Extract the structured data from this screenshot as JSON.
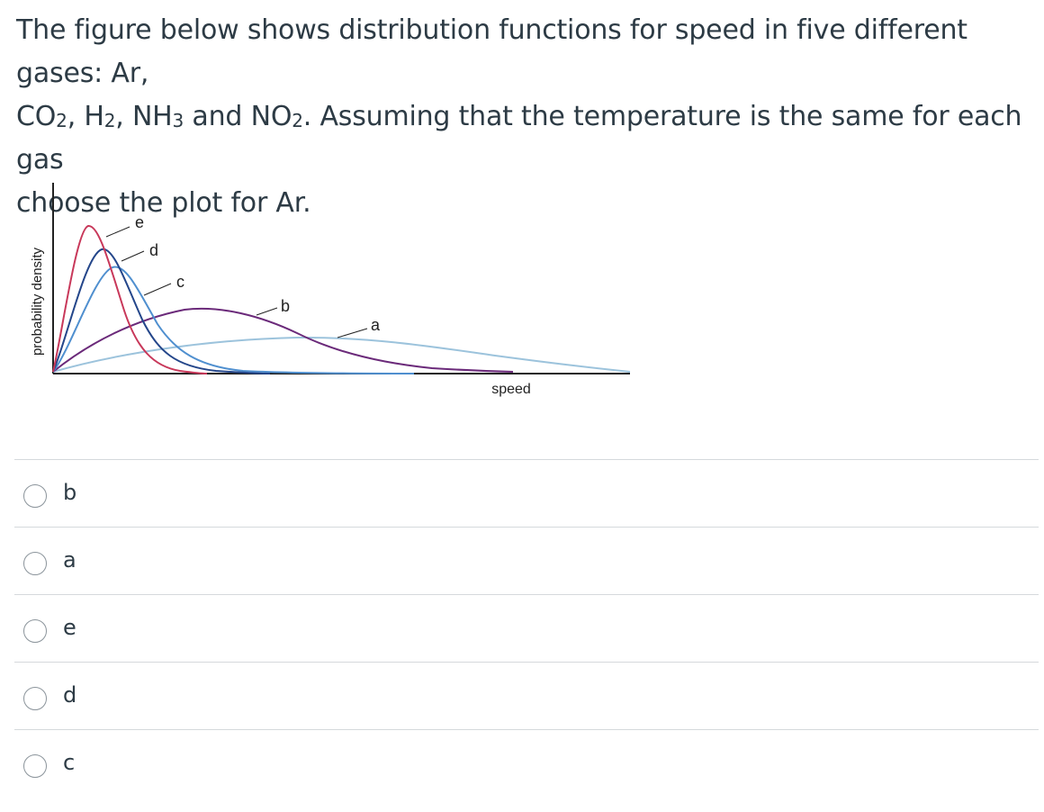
{
  "question": {
    "line1": "The figure below shows distribution functions for speed in five different gases: Ar,",
    "line2_parts": {
      "co": "CO",
      "co_sub": "2",
      "sep1": ", H",
      "h_sub": "2",
      "sep2": ", NH",
      "nh_sub": "3",
      "sep3": " and NO",
      "no_sub": "2",
      "rest": ". Assuming that the temperature is the same for each gas"
    },
    "line3": "choose the plot for Ar."
  },
  "figure": {
    "ylabel": "probability density",
    "xlabel": "speed",
    "curve_labels": [
      "e",
      "d",
      "c",
      "b",
      "a"
    ],
    "colors": {
      "e": "#c8385a",
      "d": "#24468a",
      "c": "#4f8fcf",
      "b": "#6b2a7a",
      "a": "#9cc3dc"
    }
  },
  "answers": [
    {
      "label": "b"
    },
    {
      "label": "a"
    },
    {
      "label": "e"
    },
    {
      "label": "d"
    },
    {
      "label": "c"
    }
  ]
}
